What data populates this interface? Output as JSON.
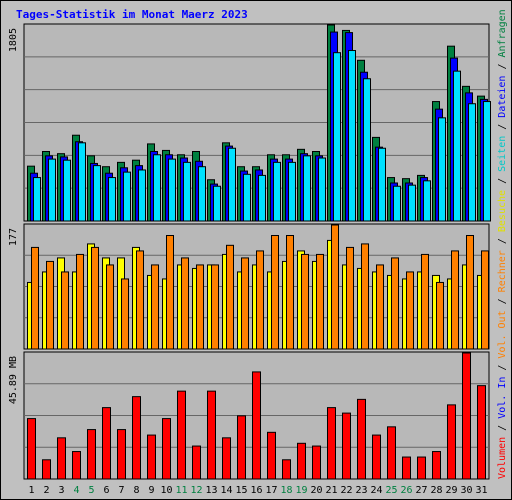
{
  "chart_data": {
    "type": "bar",
    "title": "Tages-Statistik im Monat Maerz 2023",
    "days": [
      "1",
      "2",
      "3",
      "4",
      "5",
      "6",
      "7",
      "8",
      "9",
      "10",
      "11",
      "12",
      "13",
      "14",
      "15",
      "16",
      "17",
      "18",
      "19",
      "20",
      "21",
      "22",
      "23",
      "24",
      "25",
      "26",
      "27",
      "28",
      "29",
      "30",
      "31"
    ],
    "weekend_days": [
      "4",
      "5",
      "11",
      "12",
      "18",
      "19",
      "25",
      "26"
    ],
    "panels": {
      "top": {
        "ymax_label": "1805",
        "ymax": 1805,
        "series": [
          {
            "name": "Anfragen",
            "color": "#008040",
            "values": [
              505,
              640,
              620,
              790,
              600,
              500,
              540,
              560,
              710,
              650,
              610,
              640,
              380,
              720,
              500,
              500,
              610,
              610,
              660,
              640,
              1805,
              1755,
              1480,
              770,
              400,
              390,
              420,
              1100,
              1610,
              1240,
              1150
            ]
          },
          {
            "name": "Dateien",
            "color": "#0000ff",
            "values": [
              440,
              600,
              590,
              730,
              530,
              440,
              490,
              510,
              640,
              610,
              580,
              550,
              340,
              690,
              460,
              470,
              570,
              570,
              620,
              600,
              1740,
              1735,
              1370,
              680,
              350,
              350,
              400,
              1030,
              1500,
              1180,
              1120
            ]
          },
          {
            "name": "Seiten",
            "color": "#00e0ff",
            "values": [
              400,
              570,
              560,
              720,
              510,
              400,
              450,
              470,
              610,
              570,
              540,
              500,
              320,
              670,
              430,
              420,
              540,
              540,
              600,
              580,
              1550,
              1570,
              1310,
              670,
              320,
              330,
              370,
              950,
              1380,
              1080,
              1100
            ]
          }
        ]
      },
      "middle": {
        "ymax_label": "177",
        "ymax": 177,
        "series": [
          {
            "name": "Besuche",
            "color": "#ffff00",
            "values": [
              95,
              110,
              130,
              110,
              150,
              130,
              130,
              145,
              105,
              100,
              120,
              115,
              120,
              135,
              110,
              120,
              110,
              125,
              140,
              125,
              155,
              120,
              115,
              110,
              105,
              100,
              110,
              105,
              100,
              120,
              105
            ]
          },
          {
            "name": "Rechner",
            "color": "#ff8000",
            "values": [
              145,
              125,
              110,
              135,
              145,
              120,
              100,
              140,
              120,
              162,
              130,
              120,
              120,
              148,
              130,
              140,
              162,
              162,
              135,
              135,
              177,
              145,
              150,
              120,
              130,
              110,
              135,
              95,
              140,
              162,
              140
            ]
          }
        ]
      },
      "bottom": {
        "ymax_label": "45.89 MB",
        "ymax": 45.89,
        "series": [
          {
            "name": "Volumen",
            "color": "#ff0000",
            "values": [
              22,
              7,
              15,
              10,
              18,
              26,
              18,
              30,
              16,
              22,
              32,
              12,
              32,
              15,
              23,
              39,
              17,
              7,
              13,
              12,
              26,
              24,
              29,
              16,
              19,
              8,
              8,
              10,
              27,
              45.89,
              34
            ]
          }
        ]
      }
    },
    "right_labels": [
      {
        "text": "Anfragen",
        "color": "#008040"
      },
      {
        "text": "Dateien",
        "color": "#0000ff"
      },
      {
        "text": "Seiten",
        "color": "#00c8c8"
      },
      {
        "text": "Besuche",
        "color": "#e0e000"
      },
      {
        "text": "Rechner",
        "color": "#ff8000"
      },
      {
        "text": "Vol. Out",
        "color": "#ff8000"
      },
      {
        "text": "Vol. In",
        "color": "#0000ff"
      },
      {
        "text": "Volumen",
        "color": "#ff0000"
      }
    ],
    "right_separator": "/",
    "grid": true
  }
}
